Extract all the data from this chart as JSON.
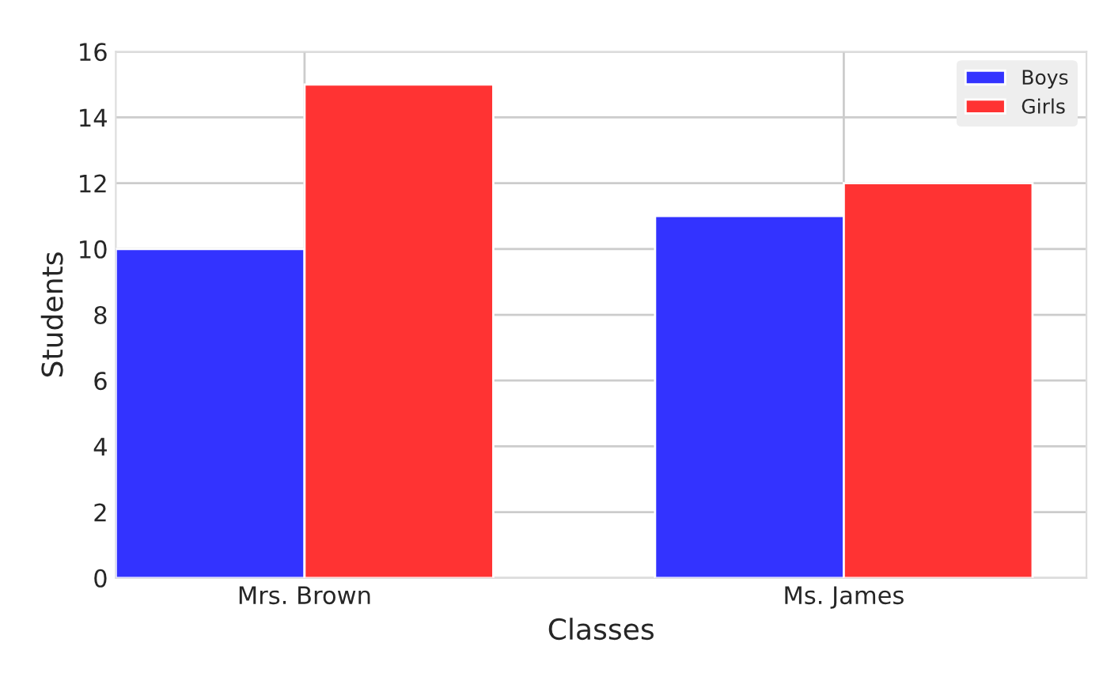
{
  "chart_data": {
    "type": "bar",
    "xlabel": "Classes",
    "ylabel": "Students",
    "categories": [
      "Mrs. Brown",
      "Ms. James"
    ],
    "series": [
      {
        "name": "Boys",
        "color": "#3333ff",
        "values": [
          10,
          11
        ]
      },
      {
        "name": "Girls",
        "color": "#ff3333",
        "values": [
          15,
          12
        ]
      }
    ],
    "ylim": [
      0,
      16
    ],
    "yticks": [
      0,
      2,
      4,
      6,
      8,
      10,
      12,
      14,
      16
    ],
    "grid": true,
    "legend": "top right"
  }
}
